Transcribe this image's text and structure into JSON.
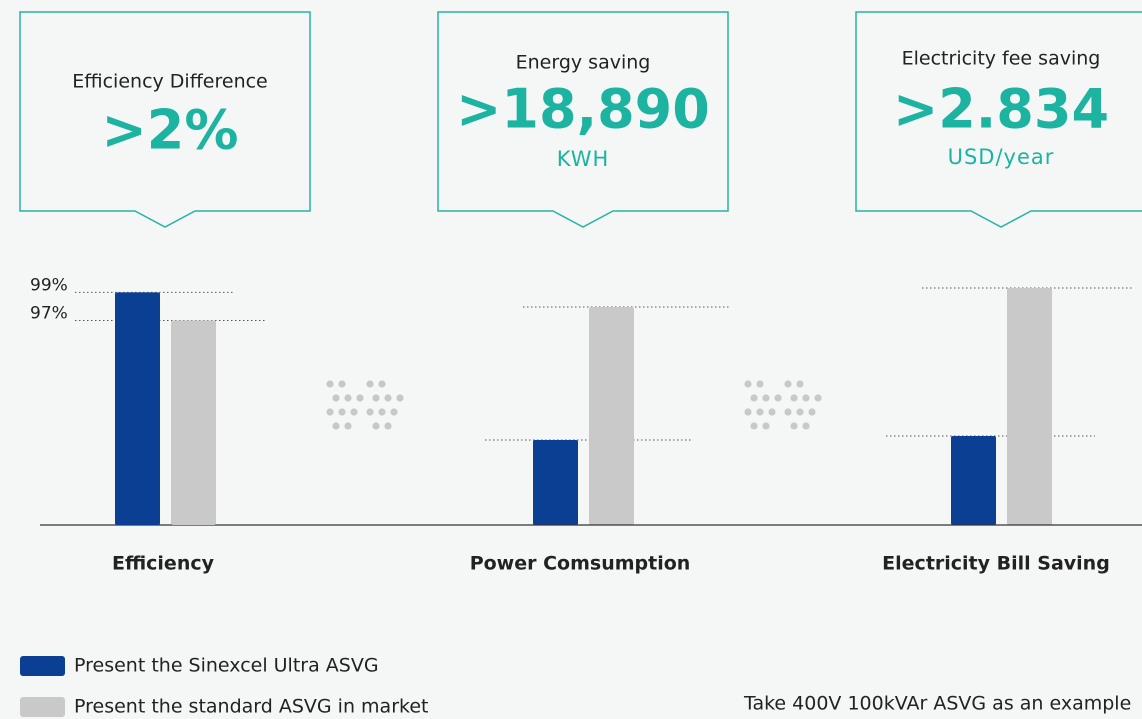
{
  "callouts": [
    {
      "label": "Efficiency Difference",
      "value": ">2%"
    },
    {
      "label": "Energy saving",
      "value": ">18,890",
      "unit": "KWH"
    },
    {
      "label": "Electricity fee saving",
      "value": ">2.834",
      "unit": "USD/year"
    }
  ],
  "chart_data": {
    "type": "bar",
    "categories": [
      "Efficiency"
    ],
    "series": [
      {
        "name": "Present the Sinexcel Ultra ASVG",
        "color": "#0b3f94",
        "values": [
          99
        ]
      },
      {
        "name": "Present the standard ASVG in market",
        "color": "#c9c9c9",
        "values": [
          97
        ]
      }
    ],
    "ylim": [
      82.4,
      100.6
    ],
    "yticks": [
      {
        "value": 99,
        "label": "99%"
      },
      {
        "value": 97,
        "label": "97%"
      }
    ]
  },
  "groups": [
    "Power Comsumption",
    "Electricity Bill Saving"
  ],
  "note": "Take 400V 100kVAr ASVG as an example"
}
